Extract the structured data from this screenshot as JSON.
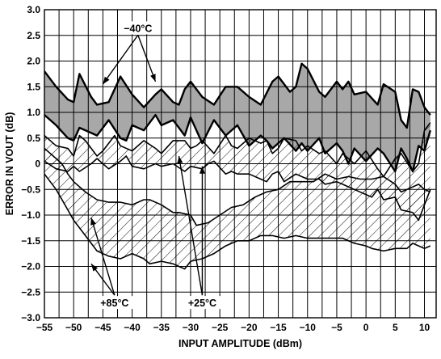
{
  "chart_data": {
    "type": "line",
    "title": "",
    "xlabel": "INPUT AMPLITUDE (dBm)",
    "ylabel": "ERROR IN VOUT (dB)",
    "xlim": [
      -55,
      12
    ],
    "ylim": [
      -3.0,
      3.0
    ],
    "x_ticks": [
      -55,
      -50,
      -45,
      -40,
      -35,
      -30,
      -25,
      -20,
      -15,
      -10,
      -5,
      0,
      5,
      10
    ],
    "y_ticks": [
      3.0,
      2.5,
      2.0,
      1.5,
      1.0,
      0.5,
      0,
      -0.5,
      -1.0,
      -1.5,
      -2.0,
      -2.5,
      -3.0
    ],
    "x_tick_labels": [
      "−55",
      "−50",
      "−45",
      "−40",
      "−35",
      "−30",
      "−25",
      "−20",
      "−15",
      "−10",
      "−5",
      "0",
      "5",
      "10"
    ],
    "y_tick_labels": [
      "3.0",
      "2.5",
      "2.0",
      "1.5",
      "1.0",
      "0.5",
      "0",
      "−0.5",
      "−1.0",
      "−1.5",
      "−2.0",
      "−2.5",
      "−3.0"
    ],
    "grid": true,
    "series": [
      {
        "name": "−40°C",
        "fill": "gray",
        "upper": [
          [
            -55,
            1.8
          ],
          [
            -53,
            1.5
          ],
          [
            -51,
            1.25
          ],
          [
            -50,
            1.2
          ],
          [
            -49,
            1.75
          ],
          [
            -47,
            1.3
          ],
          [
            -46,
            1.15
          ],
          [
            -44,
            1.2
          ],
          [
            -42,
            1.7
          ],
          [
            -40,
            1.35
          ],
          [
            -38,
            1.1
          ],
          [
            -36,
            1.35
          ],
          [
            -35,
            1.45
          ],
          [
            -33,
            1.2
          ],
          [
            -32,
            1.15
          ],
          [
            -31,
            1.45
          ],
          [
            -30,
            1.6
          ],
          [
            -28,
            1.3
          ],
          [
            -26,
            1.15
          ],
          [
            -24,
            1.5
          ],
          [
            -22,
            1.5
          ],
          [
            -20,
            1.3
          ],
          [
            -18,
            1.15
          ],
          [
            -16,
            1.6
          ],
          [
            -15,
            1.7
          ],
          [
            -13,
            1.4
          ],
          [
            -12,
            1.5
          ],
          [
            -11,
            1.95
          ],
          [
            -10,
            1.85
          ],
          [
            -8,
            1.4
          ],
          [
            -7,
            1.3
          ],
          [
            -5,
            1.6
          ],
          [
            -4,
            1.45
          ],
          [
            -3,
            1.6
          ],
          [
            -2,
            1.35
          ],
          [
            0,
            1.4
          ],
          [
            2,
            1.15
          ],
          [
            3,
            1.55
          ],
          [
            5,
            1.4
          ],
          [
            6,
            0.85
          ],
          [
            7,
            0.7
          ],
          [
            8,
            1.45
          ],
          [
            9,
            1.4
          ],
          [
            10,
            1.1
          ],
          [
            11,
            0.95
          ]
        ],
        "lower": [
          [
            -55,
            0.95
          ],
          [
            -53,
            0.75
          ],
          [
            -51,
            0.5
          ],
          [
            -50,
            0.45
          ],
          [
            -49,
            0.7
          ],
          [
            -47,
            0.6
          ],
          [
            -46,
            0.55
          ],
          [
            -44,
            0.85
          ],
          [
            -42,
            0.5
          ],
          [
            -41,
            0.45
          ],
          [
            -40,
            0.75
          ],
          [
            -38,
            0.65
          ],
          [
            -36,
            0.95
          ],
          [
            -35,
            0.75
          ],
          [
            -33,
            0.85
          ],
          [
            -32,
            0.7
          ],
          [
            -31,
            0.55
          ],
          [
            -30,
            0.9
          ],
          [
            -28,
            0.4
          ],
          [
            -26,
            0.85
          ],
          [
            -24,
            0.55
          ],
          [
            -22,
            0.75
          ],
          [
            -20,
            0.35
          ],
          [
            -18,
            0.55
          ],
          [
            -17,
            0.45
          ],
          [
            -16,
            0.3
          ],
          [
            -14,
            0.5
          ],
          [
            -12,
            0.25
          ],
          [
            -11,
            0.4
          ],
          [
            -10,
            0.25
          ],
          [
            -8,
            0.5
          ],
          [
            -7,
            0.2
          ],
          [
            -5,
            0.4
          ],
          [
            -4,
            0.25
          ],
          [
            -3,
            0.0
          ],
          [
            -2,
            0.3
          ],
          [
            0,
            0.05
          ],
          [
            2,
            0.3
          ],
          [
            3,
            0.2
          ],
          [
            5,
            -0.15
          ],
          [
            6,
            0.3
          ],
          [
            7,
            0.1
          ],
          [
            8,
            -0.15
          ],
          [
            9,
            0.35
          ],
          [
            10,
            0.25
          ],
          [
            11,
            0.65
          ]
        ]
      },
      {
        "name": "+25°C",
        "fill": "hatch",
        "upper": [
          [
            -55,
            0.55
          ],
          [
            -53,
            0.35
          ],
          [
            -51,
            0.3
          ],
          [
            -50,
            0.15
          ],
          [
            -49,
            0.55
          ],
          [
            -48,
            0.45
          ],
          [
            -46,
            0.15
          ],
          [
            -45,
            0.25
          ],
          [
            -43,
            0.55
          ],
          [
            -42,
            0.35
          ],
          [
            -40,
            0.25
          ],
          [
            -38,
            0.45
          ],
          [
            -36,
            0.3
          ],
          [
            -35,
            0.2
          ],
          [
            -33,
            0.45
          ],
          [
            -31,
            0.45
          ],
          [
            -30,
            0.3
          ],
          [
            -29,
            0.35
          ],
          [
            -28,
            0.45
          ],
          [
            -26,
            0.2
          ],
          [
            -24,
            0.55
          ],
          [
            -23,
            0.35
          ],
          [
            -22,
            0.3
          ],
          [
            -20,
            0.5
          ],
          [
            -18,
            0.4
          ],
          [
            -17,
            0.45
          ],
          [
            -16,
            0.2
          ],
          [
            -15,
            0.3
          ],
          [
            -14,
            0.5
          ],
          [
            -12,
            0.45
          ],
          [
            -11,
            0.25
          ],
          [
            -10,
            0.35
          ],
          [
            -8,
            0.2
          ],
          [
            -7,
            0.25
          ],
          [
            -5,
            0.0
          ],
          [
            -4,
            0.2
          ],
          [
            -2,
            0.0
          ],
          [
            0,
            0.25
          ],
          [
            2,
            -0.1
          ],
          [
            3,
            -0.25
          ],
          [
            5,
            0.1
          ],
          [
            6,
            0.2
          ],
          [
            8,
            -0.15
          ],
          [
            9,
            0.0
          ],
          [
            10,
            0.65
          ],
          [
            11,
            0.8
          ]
        ],
        "lower": [
          [
            -55,
            0.05
          ],
          [
            -53,
            -0.1
          ],
          [
            -51,
            -0.15
          ],
          [
            -50,
            -0.05
          ],
          [
            -49,
            -0.15
          ],
          [
            -47,
            0.0
          ],
          [
            -46,
            0.1
          ],
          [
            -44,
            -0.1
          ],
          [
            -42,
            0.05
          ],
          [
            -41,
            0.15
          ],
          [
            -40,
            -0.05
          ],
          [
            -38,
            -0.1
          ],
          [
            -36,
            0.0
          ],
          [
            -35,
            -0.05
          ],
          [
            -33,
            0.0
          ],
          [
            -31,
            -0.15
          ],
          [
            -30,
            -0.05
          ],
          [
            -28,
            -0.1
          ],
          [
            -27,
            0.0
          ],
          [
            -26,
            0.05
          ],
          [
            -24,
            -0.2
          ],
          [
            -23,
            -0.15
          ],
          [
            -22,
            -0.2
          ],
          [
            -20,
            -0.2
          ],
          [
            -18,
            -0.3
          ],
          [
            -17,
            -0.35
          ],
          [
            -16,
            -0.2
          ],
          [
            -15,
            -0.15
          ],
          [
            -14,
            -0.35
          ],
          [
            -12,
            -0.2
          ],
          [
            -11,
            -0.25
          ],
          [
            -10,
            -0.3
          ],
          [
            -8,
            -0.3
          ],
          [
            -7,
            -0.4
          ],
          [
            -5,
            -0.35
          ],
          [
            -4,
            -0.4
          ],
          [
            -2,
            -0.5
          ],
          [
            0,
            -0.6
          ],
          [
            1,
            -0.65
          ],
          [
            2,
            -0.5
          ],
          [
            3,
            -0.7
          ],
          [
            5,
            -0.65
          ],
          [
            6,
            -0.9
          ],
          [
            8,
            -0.95
          ],
          [
            9,
            -1.1
          ],
          [
            10,
            -0.8
          ],
          [
            11,
            -0.5
          ]
        ]
      },
      {
        "name": "+85°C",
        "fill": "hatch",
        "upper": [
          [
            -55,
            0.3
          ],
          [
            -53,
            0.1
          ],
          [
            -52,
            0.0
          ],
          [
            -51,
            -0.2
          ],
          [
            -50,
            -0.35
          ],
          [
            -48,
            -0.55
          ],
          [
            -46,
            -0.7
          ],
          [
            -44,
            -0.75
          ],
          [
            -42,
            -0.75
          ],
          [
            -40,
            -0.8
          ],
          [
            -38,
            -0.7
          ],
          [
            -37,
            -0.7
          ],
          [
            -35,
            -0.8
          ],
          [
            -33,
            -0.95
          ],
          [
            -32,
            -0.95
          ],
          [
            -30,
            -1.0
          ],
          [
            -29,
            -1.2
          ],
          [
            -27,
            -1.15
          ],
          [
            -25,
            -1.0
          ],
          [
            -23,
            -0.85
          ],
          [
            -21,
            -0.8
          ],
          [
            -19,
            -0.65
          ],
          [
            -17,
            -0.55
          ],
          [
            -15,
            -0.5
          ],
          [
            -13,
            -0.35
          ],
          [
            -11,
            -0.35
          ],
          [
            -9,
            -0.35
          ],
          [
            -7,
            -0.2
          ],
          [
            -5,
            -0.3
          ],
          [
            -3,
            -0.25
          ],
          [
            -1,
            -0.3
          ],
          [
            1,
            -0.3
          ],
          [
            3,
            -0.25
          ],
          [
            5,
            -0.4
          ],
          [
            6,
            -0.55
          ],
          [
            7,
            -0.5
          ],
          [
            9,
            -0.4
          ],
          [
            10,
            -0.5
          ],
          [
            11,
            -0.55
          ]
        ],
        "lower": [
          [
            -55,
            -0.2
          ],
          [
            -53,
            -0.5
          ],
          [
            -51,
            -0.9
          ],
          [
            -50,
            -1.1
          ],
          [
            -48,
            -1.4
          ],
          [
            -46,
            -1.7
          ],
          [
            -44,
            -1.8
          ],
          [
            -42,
            -1.85
          ],
          [
            -41,
            -1.8
          ],
          [
            -40,
            -1.75
          ],
          [
            -38,
            -1.85
          ],
          [
            -37,
            -1.95
          ],
          [
            -35,
            -1.9
          ],
          [
            -33,
            -1.95
          ],
          [
            -32,
            -2.0
          ],
          [
            -31,
            -2.05
          ],
          [
            -30,
            -1.9
          ],
          [
            -28,
            -1.85
          ],
          [
            -26,
            -1.75
          ],
          [
            -24,
            -1.6
          ],
          [
            -22,
            -1.5
          ],
          [
            -20,
            -1.5
          ],
          [
            -18,
            -1.4
          ],
          [
            -16,
            -1.4
          ],
          [
            -14,
            -1.45
          ],
          [
            -12,
            -1.4
          ],
          [
            -10,
            -1.45
          ],
          [
            -8,
            -1.45
          ],
          [
            -6,
            -1.45
          ],
          [
            -4,
            -1.45
          ],
          [
            -2,
            -1.55
          ],
          [
            0,
            -1.6
          ],
          [
            1,
            -1.65
          ],
          [
            3,
            -1.7
          ],
          [
            5,
            -1.65
          ],
          [
            7,
            -1.65
          ],
          [
            8,
            -1.55
          ],
          [
            9,
            -1.6
          ],
          [
            10,
            -1.65
          ],
          [
            11,
            -1.6
          ]
        ]
      }
    ],
    "annotations": [
      {
        "text": "−40°C",
        "x": -39,
        "y": 2.6,
        "arrows": [
          [
            -45,
            1.55
          ],
          [
            -36,
            1.6
          ]
        ]
      },
      {
        "text": "+85°C",
        "x": -43,
        "y": -2.75,
        "arrows": [
          [
            -47,
            -1.05
          ],
          [
            -47,
            -1.95
          ]
        ]
      },
      {
        "text": "+25°C",
        "x": -28,
        "y": -2.75,
        "arrows": [
          [
            -32,
            0.15
          ],
          [
            -28,
            -0.05
          ]
        ]
      }
    ]
  }
}
